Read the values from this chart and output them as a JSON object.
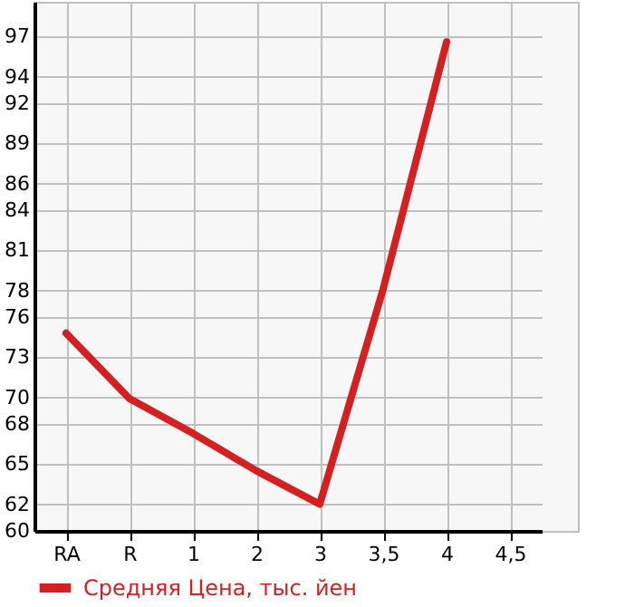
{
  "chart_data": {
    "type": "line",
    "categories": [
      "RA",
      "R",
      "1",
      "2",
      "3",
      "3,5",
      "4",
      "4,5"
    ],
    "series": [
      {
        "name": "Средняя Цена, тыс. йен",
        "color": "#d42020",
        "values": [
          74.8,
          69.9,
          67.3,
          64.5,
          62.0,
          78.1,
          96.6,
          null
        ]
      }
    ],
    "ylim": [
      60,
      99.6
    ],
    "yticks": [
      60,
      62,
      65,
      68,
      70,
      73,
      76,
      78,
      81,
      84,
      86,
      89,
      92,
      94,
      97
    ],
    "grid": true,
    "legend": "bottom left",
    "marker": "none",
    "line_style": "solid"
  }
}
